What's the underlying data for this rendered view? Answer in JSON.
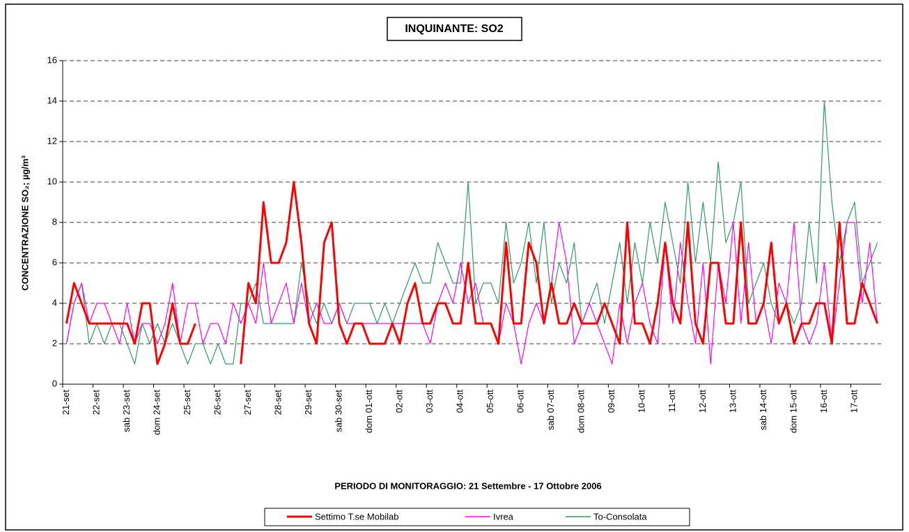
{
  "chart_data": {
    "type": "line",
    "title": "INQUINANTE: SO2",
    "y_label": "CONCENTRAZIONE SO₂;  µg/m³",
    "x_label": "PERIODO DI MONITORAGGIO: 21 Settembre - 17 Ottobre 2006",
    "categories": [
      "21-set",
      null,
      null,
      null,
      "22-set",
      null,
      null,
      null,
      "sab 23-set",
      null,
      null,
      null,
      "dom 24-set",
      null,
      null,
      null,
      "25-set",
      null,
      null,
      null,
      "26-set",
      null,
      null,
      null,
      "27-set",
      null,
      null,
      null,
      "28-set",
      null,
      null,
      null,
      "29-set",
      null,
      null,
      null,
      "sab 30-set",
      null,
      null,
      null,
      "dom 01-ott",
      null,
      null,
      null,
      "02-ott",
      null,
      null,
      null,
      "03-ott",
      null,
      null,
      null,
      "04-ott",
      null,
      null,
      null,
      "05-ott",
      null,
      null,
      null,
      "06-ott",
      null,
      null,
      null,
      "sab 07-ott",
      null,
      null,
      null,
      "dom 08-ott",
      null,
      null,
      null,
      "09-ott",
      null,
      null,
      null,
      "10-ott",
      null,
      null,
      null,
      "11-ott",
      null,
      null,
      null,
      "12-ott",
      null,
      null,
      null,
      "13-ott",
      null,
      null,
      null,
      "sab 14-ott",
      null,
      null,
      null,
      "dom 15-ott",
      null,
      null,
      null,
      "16-ott",
      null,
      null,
      null,
      "17-ott",
      null,
      null,
      null
    ],
    "series": [
      {
        "name": "Settimo T.se Mobilab",
        "color": "#ff0000",
        "values": [
          3,
          5,
          4,
          3,
          3,
          3,
          3,
          3,
          3,
          2,
          4,
          4,
          1,
          2,
          4,
          2,
          2,
          3,
          null,
          null,
          null,
          null,
          null,
          1,
          5,
          4,
          9,
          6,
          6,
          7,
          10,
          7,
          3,
          2,
          7,
          8,
          3,
          2,
          3,
          3,
          2,
          2,
          2,
          3,
          2,
          4,
          5,
          3,
          3,
          4,
          4,
          3,
          3,
          6,
          3,
          3,
          3,
          2,
          7,
          3,
          3,
          7,
          6,
          3,
          5,
          3,
          3,
          4,
          3,
          3,
          3,
          4,
          3,
          2,
          8,
          3,
          3,
          2,
          4,
          7,
          4,
          3,
          8,
          3,
          2,
          6,
          6,
          3,
          3,
          8,
          3,
          3,
          4,
          7,
          3,
          4,
          2,
          3,
          3,
          4,
          4,
          2,
          8,
          3,
          3,
          5,
          4,
          3
        ]
      },
      {
        "name": "Ivrea",
        "color": "#ff00ff",
        "values": [
          2,
          4,
          5,
          3,
          4,
          4,
          3,
          2,
          4,
          2,
          3,
          3,
          2,
          3,
          5,
          2,
          4,
          4,
          2,
          3,
          3,
          2,
          4,
          3,
          4,
          3,
          6,
          3,
          4,
          5,
          3,
          5,
          3,
          4,
          3,
          3,
          4,
          3,
          3,
          3,
          3,
          3,
          3,
          3,
          3,
          3,
          3,
          3,
          2,
          4,
          5,
          4,
          6,
          4,
          5,
          3,
          3,
          2,
          4,
          3,
          1,
          3,
          4,
          3,
          5,
          8,
          6,
          2,
          3,
          4,
          3,
          2,
          1,
          4,
          2,
          4,
          5,
          3,
          2,
          7,
          3,
          7,
          4,
          2,
          6,
          1,
          6,
          4,
          8,
          3,
          7,
          3,
          4,
          2,
          5,
          4,
          8,
          3,
          2,
          3,
          6,
          2,
          5,
          8,
          8,
          4,
          7,
          3
        ]
      },
      {
        "name": "To-Consolata",
        "color": "#339966",
        "values": [
          2,
          4,
          5,
          2,
          3,
          2,
          3,
          3,
          2,
          1,
          3,
          2,
          3,
          2,
          3,
          2,
          1,
          2,
          2,
          1,
          2,
          1,
          1,
          4,
          4,
          5,
          3,
          3,
          3,
          3,
          3,
          6,
          4,
          3,
          4,
          3,
          4,
          3,
          4,
          4,
          4,
          3,
          4,
          3,
          4,
          5,
          6,
          5,
          5,
          7,
          6,
          5,
          5,
          10,
          4,
          5,
          5,
          4,
          8,
          5,
          6,
          8,
          5,
          8,
          4,
          6,
          5,
          7,
          3,
          4,
          5,
          3,
          5,
          7,
          4,
          7,
          5,
          8,
          6,
          9,
          7,
          5,
          10,
          6,
          9,
          6,
          11,
          7,
          8,
          10,
          4,
          5,
          6,
          4,
          3,
          4,
          3,
          4,
          8,
          5,
          14,
          9,
          6,
          8,
          9,
          5,
          6,
          7
        ]
      }
    ],
    "ylim": [
      0,
      16
    ],
    "yticks": [
      0,
      2,
      4,
      6,
      8,
      10,
      12,
      14,
      16
    ],
    "grid": true
  }
}
